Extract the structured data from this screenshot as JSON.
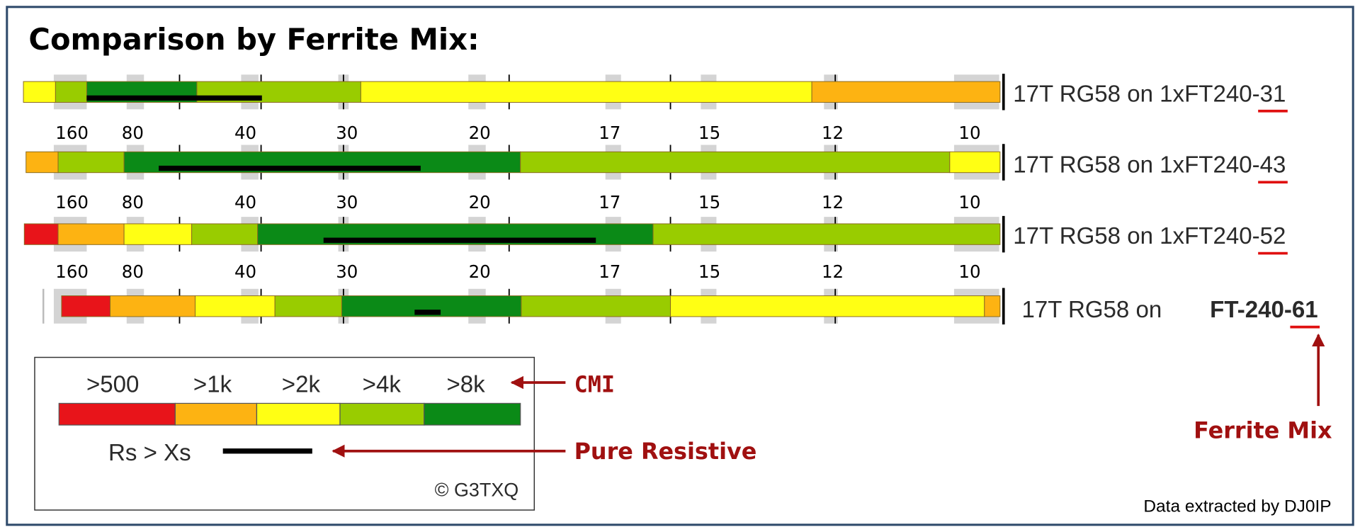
{
  "title": "Comparison by Ferrite Mix:",
  "band_labels": [
    160,
    80,
    40,
    30,
    20,
    17,
    15,
    12,
    10
  ],
  "rows": [
    {
      "label": "17T RG58 on 1xFT240-",
      "mix": "31"
    },
    {
      "label": "17T RG58 on 1xFT240-",
      "mix": "43"
    },
    {
      "label": "17T RG58 on 1xFT240-",
      "mix": "52"
    },
    {
      "label": "17T RG58 on",
      "label2": "FT-240-",
      "mix": "61"
    }
  ],
  "legend": {
    "cmi_levels": [
      ">500",
      ">1k",
      ">2k",
      ">4k",
      ">8k"
    ],
    "resistive": "Rs > Xs",
    "credit": "© G3TXQ"
  },
  "annotations": {
    "cmi": "CMI",
    "pure_resistive": "Pure Resistive",
    "ferrite_mix": "Ferrite Mix",
    "source": "Data extracted by DJ0IP"
  }
}
